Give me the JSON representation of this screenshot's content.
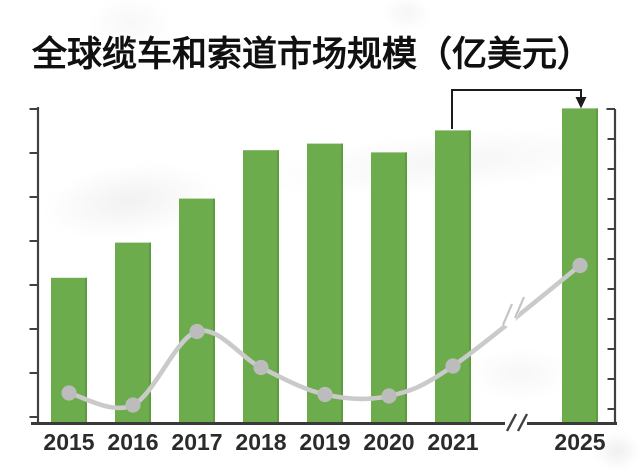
{
  "title": "全球缆车和索道市场规模（亿美元）",
  "colors": {
    "bar": "#6CAC4C",
    "bar_edge": "#5E9C41",
    "line": "#CACACA",
    "dot": "#BCBCBC",
    "axis": "#404040",
    "x_axis": "#3A3A3A",
    "label": "#2B2B2B",
    "arrow": "#1C1C1C",
    "background": "#FFFFFF"
  },
  "chart_data": {
    "type": "bar",
    "title": "全球缆车和索道市场规模（亿美元）",
    "categories": [
      "2015",
      "2016",
      "2017",
      "2018",
      "2019",
      "2020",
      "2021",
      "2025"
    ],
    "x_axis_break": {
      "between": [
        "2021",
        "2025"
      ],
      "marker": "//"
    },
    "series": [
      {
        "name": "market-size-bars",
        "type": "bar",
        "axis": "left",
        "unit": "left-axis tick intervals (axis has no numeric labels)",
        "values": [
          3.3,
          4.1,
          5.1,
          6.2,
          6.35,
          6.15,
          6.65,
          7.15
        ]
      },
      {
        "name": "trend-line",
        "type": "line",
        "axis": "right",
        "unit": "right-axis tick intervals (axis has no numeric labels)",
        "values": [
          1.0,
          0.6,
          3.05,
          1.85,
          0.95,
          0.9,
          1.9,
          5.25
        ],
        "line_break_between": [
          "2021",
          "2025"
        ]
      }
    ],
    "xlabel": "",
    "ylabel": "",
    "left_axis": {
      "tick_count": 8,
      "tick_labels": []
    },
    "right_axis": {
      "tick_count": 11,
      "tick_labels": []
    },
    "annotation_arrow": {
      "from_category": "2021",
      "to_category": "2025"
    },
    "grid": false
  }
}
